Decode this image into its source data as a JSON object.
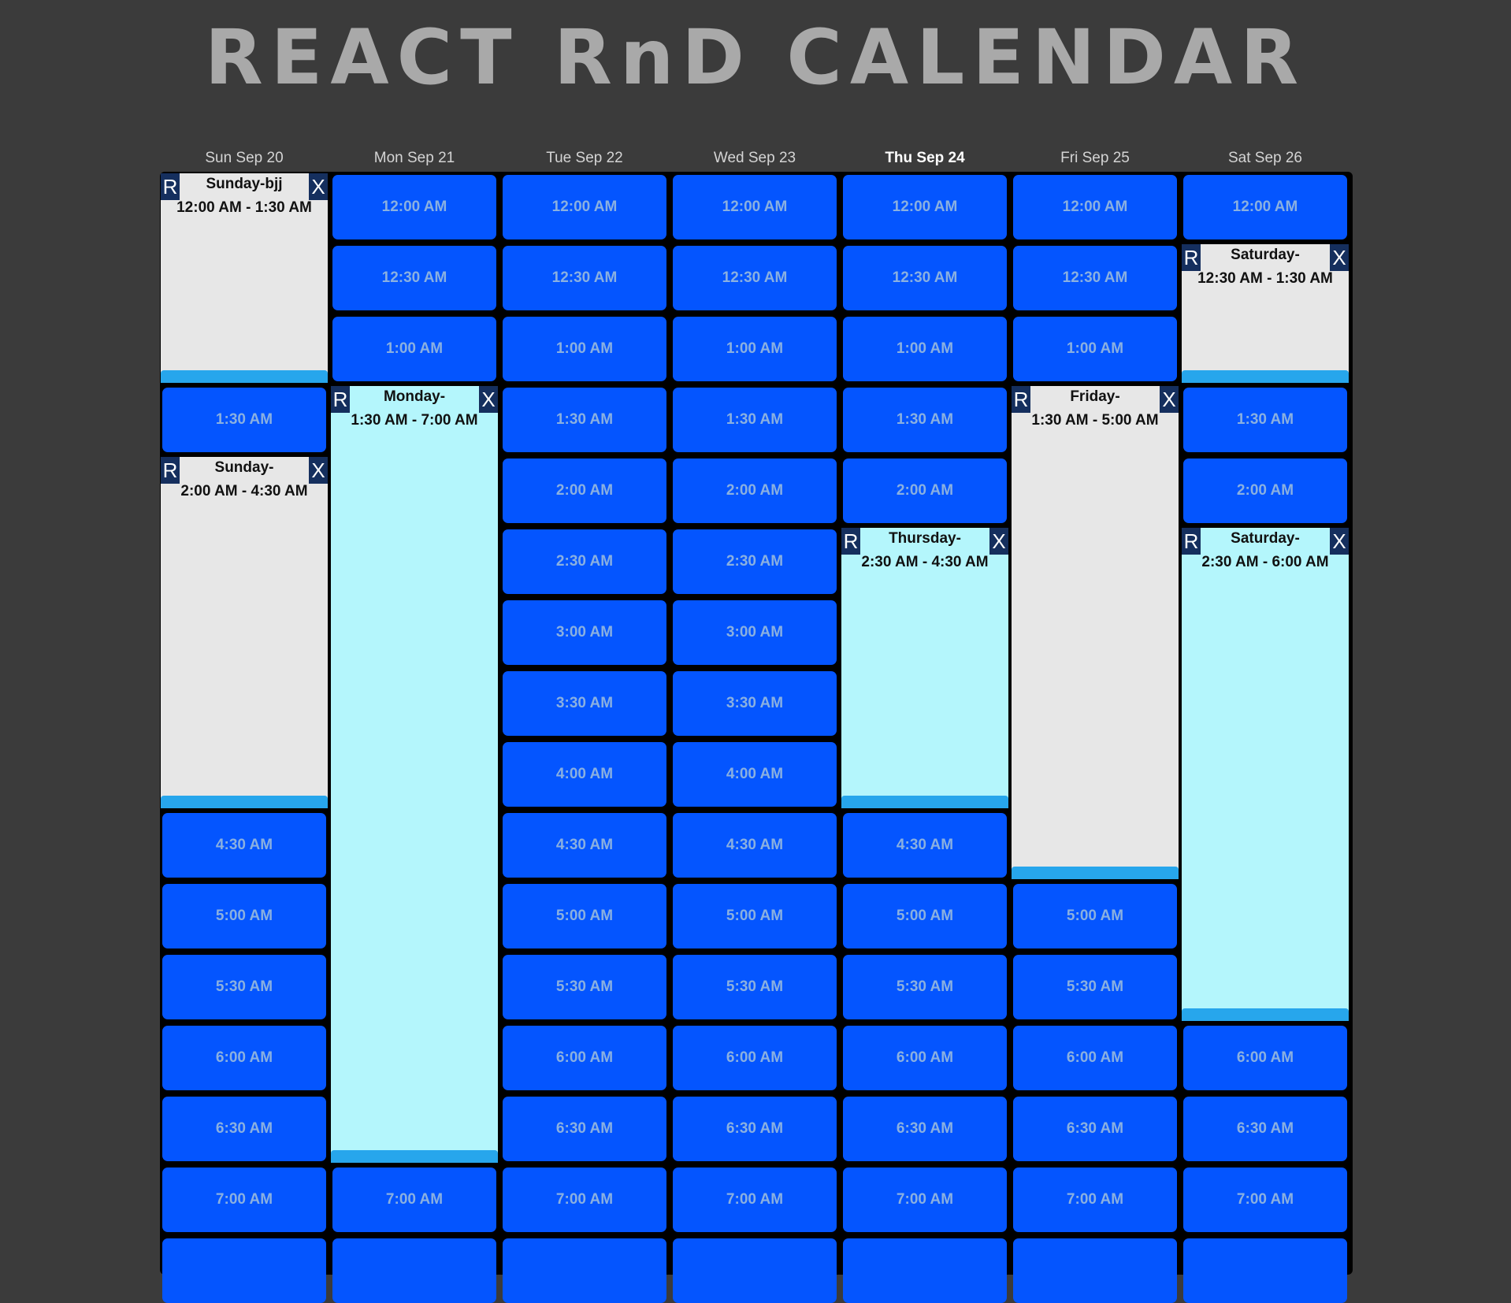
{
  "title": "REACT RnD CALENDAR",
  "days": [
    {
      "label": "Sun Sep 20",
      "today": false
    },
    {
      "label": "Mon Sep 21",
      "today": false
    },
    {
      "label": "Tue Sep 22",
      "today": false
    },
    {
      "label": "Wed Sep 23",
      "today": false
    },
    {
      "label": "Thu Sep 24",
      "today": true
    },
    {
      "label": "Fri Sep 25",
      "today": false
    },
    {
      "label": "Sat Sep 26",
      "today": false
    }
  ],
  "time_slots": [
    "12:00 AM",
    "12:30 AM",
    "1:00 AM",
    "1:30 AM",
    "2:00 AM",
    "2:30 AM",
    "3:00 AM",
    "3:30 AM",
    "4:00 AM",
    "4:30 AM",
    "5:00 AM",
    "5:30 AM",
    "6:00 AM",
    "6:30 AM",
    "7:00 AM"
  ],
  "event_buttons": {
    "resize": "R",
    "delete": "X"
  },
  "events": [
    {
      "day": 0,
      "name": "Sunday-bjj",
      "time": "12:00 AM - 1:30 AM",
      "start_slot": 0,
      "end_slot": 3,
      "color": "gray"
    },
    {
      "day": 0,
      "name": "Sunday-",
      "time": "2:00 AM - 4:30 AM",
      "start_slot": 4,
      "end_slot": 9,
      "color": "gray"
    },
    {
      "day": 1,
      "name": "Monday-",
      "time": "1:30 AM - 7:00 AM",
      "start_slot": 3,
      "end_slot": 14,
      "color": "cyan"
    },
    {
      "day": 4,
      "name": "Thursday-",
      "time": "2:30 AM - 4:30 AM",
      "start_slot": 5,
      "end_slot": 9,
      "color": "cyan"
    },
    {
      "day": 5,
      "name": "Friday-",
      "time": "1:30 AM - 5:00 AM",
      "start_slot": 3,
      "end_slot": 10,
      "color": "gray"
    },
    {
      "day": 6,
      "name": "Saturday-",
      "time": "12:30 AM - 1:30 AM",
      "start_slot": 1,
      "end_slot": 3,
      "color": "gray"
    },
    {
      "day": 6,
      "name": "Saturday-",
      "time": "2:30 AM - 6:00 AM",
      "start_slot": 5,
      "end_slot": 12,
      "color": "cyan"
    }
  ],
  "colors": {
    "background": "#3b3b3b",
    "slot": "#0455ff",
    "slot_text": "#8ab0e0",
    "event_gray": "#e7e7e7",
    "event_cyan": "#b4f6fc",
    "event_button": "#152f5e",
    "resize_handle": "#27a6ec"
  }
}
